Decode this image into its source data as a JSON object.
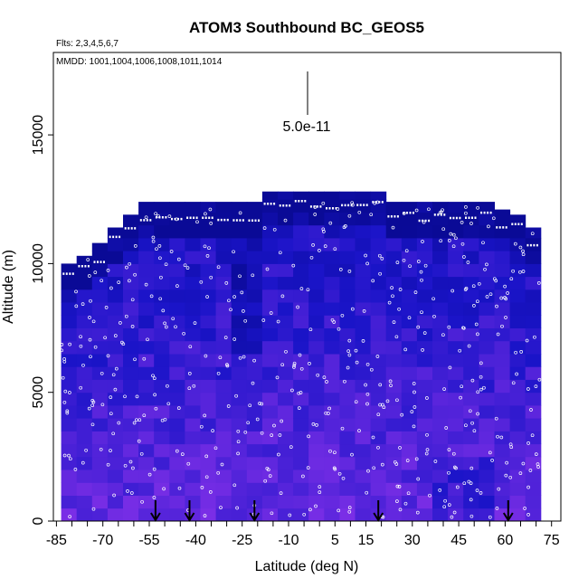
{
  "chart_data": {
    "type": "heatmap",
    "title": "ATOM3 Southbound BC_GEOS5",
    "flights_note": "Flts: 2,3,4,5,6,7",
    "dates_note": "MMDD: 1001,1004,1006,1008,1011,1014",
    "xlabel": "Latitude (deg N)",
    "ylabel": "Altitude (m)",
    "xlim": [
      -86,
      78
    ],
    "ylim": [
      0,
      18200
    ],
    "x_ticks": [
      -85,
      -70,
      -55,
      -40,
      -25,
      -10,
      5,
      15,
      30,
      45,
      60,
      75
    ],
    "y_ticks": [
      0,
      5000,
      10000,
      15000
    ],
    "scale_bar_label": "5.0e-11",
    "color_scale": {
      "low": "#7a2ee6",
      "mid": "#1a14c8",
      "high": "#0a0a96"
    },
    "columns": [
      {
        "lat": -81,
        "top": 10000
      },
      {
        "lat": -76,
        "top": 10300
      },
      {
        "lat": -71,
        "top": 10800
      },
      {
        "lat": -66,
        "top": 11400
      },
      {
        "lat": -61,
        "top": 11900
      },
      {
        "lat": -56,
        "top": 12400
      },
      {
        "lat": -51,
        "top": 12400
      },
      {
        "lat": -46,
        "top": 12400
      },
      {
        "lat": -41,
        "top": 12400
      },
      {
        "lat": -36,
        "top": 12400
      },
      {
        "lat": -31,
        "top": 12400
      },
      {
        "lat": -26,
        "top": 12400
      },
      {
        "lat": -21,
        "top": 12400
      },
      {
        "lat": -16,
        "top": 12800
      },
      {
        "lat": -11,
        "top": 12800
      },
      {
        "lat": -6,
        "top": 12800
      },
      {
        "lat": -1,
        "top": 12800
      },
      {
        "lat": 4,
        "top": 12800
      },
      {
        "lat": 9,
        "top": 12800
      },
      {
        "lat": 14,
        "top": 12800
      },
      {
        "lat": 19,
        "top": 12800
      },
      {
        "lat": 24,
        "top": 12400
      },
      {
        "lat": 29,
        "top": 12400
      },
      {
        "lat": 34,
        "top": 12400
      },
      {
        "lat": 39,
        "top": 12400
      },
      {
        "lat": 44,
        "top": 12400
      },
      {
        "lat": 49,
        "top": 12400
      },
      {
        "lat": 54,
        "top": 12400
      },
      {
        "lat": 59,
        "top": 12100
      },
      {
        "lat": 64,
        "top": 11900
      },
      {
        "lat": 69,
        "top": 11400
      }
    ],
    "arrows_lat": [
      -53,
      -42,
      -21,
      19,
      61
    ]
  }
}
